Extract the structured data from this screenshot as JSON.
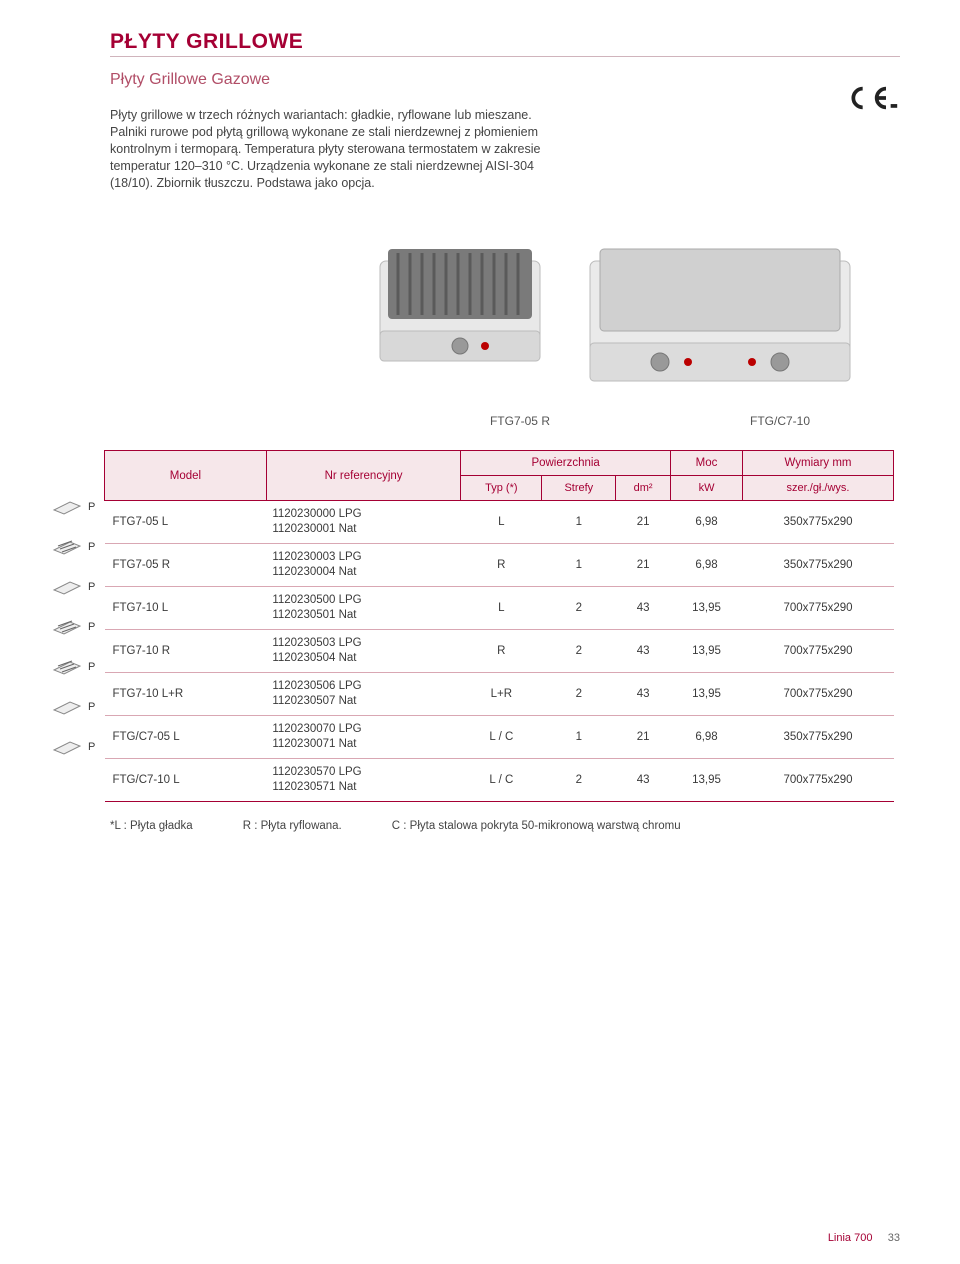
{
  "page_title": "PŁYTY GRILLOWE",
  "subtitle": "Płyty Grillowe Gazowe",
  "description": "Płyty grillowe w trzech różnych wariantach: gładkie, ryflowane lub mieszane. Palniki rurowe pod płytą grillową wykonane ze stali nierdzewnej z płomieniem kontrolnym i termoparą. Temperatura płyty sterowana termostatem w zakresie temperatur 120–310 °C. Urządzenia wykonane ze stali nierdzewnej AISI-304 (18/10). Zbiornik tłuszczu. Podstawa jako opcja.",
  "caption_left": "FTG7-05 R",
  "caption_right": "FTG/C7-10",
  "headers": {
    "model": "Model",
    "ref": "Nr referencyjny",
    "surface": "Powierzchnia",
    "power": "Moc",
    "dims": "Wymiary mm",
    "typ": "Typ (*)",
    "strefy": "Strefy",
    "dm2": "dm²",
    "kw": "kW",
    "szgw": "szer./gł./wys."
  },
  "rows": [
    {
      "p": "P",
      "model": "FTG7-05 L",
      "ref1": "1120230000 LPG",
      "ref2": "1120230001 Nat",
      "typ": "L",
      "strefy": "1",
      "dm2": "21",
      "kw": "6,98",
      "dims": "350x775x290"
    },
    {
      "p": "P",
      "model": "FTG7-05 R",
      "ref1": "1120230003 LPG",
      "ref2": "1120230004 Nat",
      "typ": "R",
      "strefy": "1",
      "dm2": "21",
      "kw": "6,98",
      "dims": "350x775x290"
    },
    {
      "p": "P",
      "model": "FTG7-10 L",
      "ref1": "1120230500 LPG",
      "ref2": "1120230501 Nat",
      "typ": "L",
      "strefy": "2",
      "dm2": "43",
      "kw": "13,95",
      "dims": "700x775x290"
    },
    {
      "p": "P",
      "model": "FTG7-10 R",
      "ref1": "1120230503 LPG",
      "ref2": "1120230504 Nat",
      "typ": "R",
      "strefy": "2",
      "dm2": "43",
      "kw": "13,95",
      "dims": "700x775x290"
    },
    {
      "p": "P",
      "model": "FTG7-10 L+R",
      "ref1": "1120230506 LPG",
      "ref2": "1120230507 Nat",
      "typ": "L+R",
      "strefy": "2",
      "dm2": "43",
      "kw": "13,95",
      "dims": "700x775x290"
    },
    {
      "p": "P",
      "model": "FTG/C7-05 L",
      "ref1": "1120230070 LPG",
      "ref2": "1120230071 Nat",
      "typ": "L / C",
      "strefy": "1",
      "dm2": "21",
      "kw": "6,98",
      "dims": "350x775x290"
    },
    {
      "p": "P",
      "model": "FTG/C7-10 L",
      "ref1": "1120230570 LPG",
      "ref2": "1120230571 Nat",
      "typ": "L / C",
      "strefy": "2",
      "dm2": "43",
      "kw": "13,95",
      "dims": "700x775x290"
    }
  ],
  "legend": {
    "l": "*L : Płyta gładka",
    "r": "R : Płyta ryflowana.",
    "c": "C : Płyta stalowa pokryta 50-mikronową warstwą chromu"
  },
  "footer": {
    "label": "Linia 700",
    "page": "33"
  },
  "colors": {
    "brand": "#a50034",
    "head_bg": "#f6e7ea",
    "row_border": "#d9a7b3"
  }
}
